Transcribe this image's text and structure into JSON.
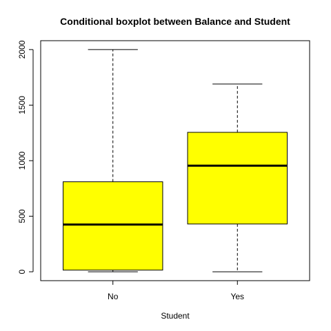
{
  "chart_data": {
    "type": "boxplot",
    "title": "Conditional boxplot between Balance and Student",
    "xlabel": "Student",
    "ylabel": "",
    "categories": [
      "No",
      "Yes"
    ],
    "boxes": [
      {
        "category": "No",
        "min": 0,
        "q1": 15,
        "median": 425,
        "q3": 810,
        "max": 2000
      },
      {
        "category": "Yes",
        "min": 0,
        "q1": 430,
        "median": 955,
        "q3": 1255,
        "max": 1690
      }
    ],
    "y_ticks": [
      0,
      500,
      1000,
      1500,
      2000
    ],
    "y_tick_labels": [
      "0",
      "500",
      "1000",
      "1500",
      "2000"
    ],
    "ylim": [
      -80,
      2080
    ],
    "box_color": "#ffff00",
    "grid": false
  }
}
